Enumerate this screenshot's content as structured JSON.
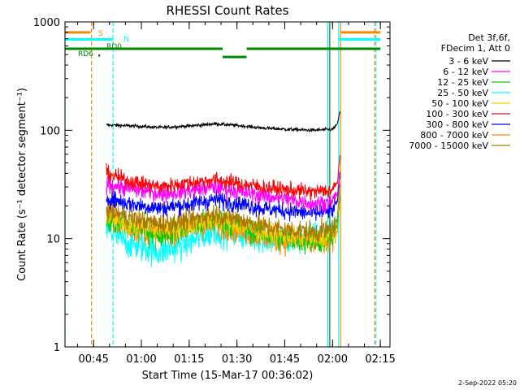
{
  "chart_data": {
    "type": "line",
    "title": "RHESSI Count Rates",
    "xlabel": "Start Time (15-Mar-17 00:36:02)",
    "ylabel": "Count Rate (s⁻¹ detector segment⁻¹)",
    "x_units": "minutes after 00:36:02",
    "xlim": [
      0,
      102
    ],
    "ylim": [
      1,
      1000
    ],
    "yscale": "log",
    "x_ticks": [
      {
        "value": 8.97,
        "label": "00:45"
      },
      {
        "value": 23.97,
        "label": "01:00"
      },
      {
        "value": 38.97,
        "label": "01:15"
      },
      {
        "value": 53.97,
        "label": "01:30"
      },
      {
        "value": 68.97,
        "label": "01:45"
      },
      {
        "value": 83.97,
        "label": "02:00"
      },
      {
        "value": 98.97,
        "label": "02:15"
      }
    ],
    "y_ticks": [
      {
        "value": 1,
        "label": "1"
      },
      {
        "value": 10,
        "label": "10"
      },
      {
        "value": 100,
        "label": "100"
      },
      {
        "value": 1000,
        "label": "1000"
      }
    ],
    "legend_title": [
      "Det 3f,6f,",
      "FDecim 1, Att 0"
    ],
    "legend_position": "right",
    "series": [
      {
        "name": "3 - 6 keV",
        "color": "#000000",
        "x": [
          13,
          20,
          30,
          40,
          47,
          55,
          62,
          70,
          78,
          84,
          85.5,
          86.3
        ],
        "y": [
          112,
          110,
          106,
          110,
          115,
          110,
          105,
          102,
          100,
          102,
          115,
          150
        ]
      },
      {
        "name": "6 - 12 keV",
        "color": "#ff00ff",
        "x": [
          13,
          20,
          30,
          40,
          47,
          55,
          62,
          70,
          78,
          84,
          85.5,
          86.3
        ],
        "y": [
          32,
          29,
          26,
          28,
          30,
          27,
          25,
          23,
          21,
          22,
          26,
          42
        ]
      },
      {
        "name": "12 - 25 keV",
        "color": "#00cc00",
        "x": [
          13,
          20,
          30,
          40,
          47,
          55,
          62,
          70,
          78,
          84,
          85.5,
          86.3
        ],
        "y": [
          15,
          13,
          11,
          13,
          15,
          13,
          11,
          10,
          9.5,
          10,
          13,
          26
        ]
      },
      {
        "name": "25 - 50 keV",
        "color": "#00ffff",
        "x": [
          13,
          20,
          30,
          40,
          47,
          55,
          62,
          70,
          78,
          84,
          85.5,
          86.3
        ],
        "y": [
          12,
          9,
          7.5,
          9.5,
          12,
          11,
          10,
          9.5,
          10.5,
          11,
          14,
          24
        ]
      },
      {
        "name": "50 - 100 keV",
        "color": "#ffcc00",
        "x": [
          13,
          20,
          30,
          40,
          47,
          55,
          62,
          70,
          78,
          84,
          85.5,
          86.3
        ],
        "y": [
          16,
          13.5,
          12,
          13.5,
          15,
          13,
          11.5,
          10.5,
          10,
          10.5,
          14,
          28
        ]
      },
      {
        "name": "100 - 300 keV",
        "color": "#ff0000",
        "x": [
          13,
          20,
          30,
          40,
          47,
          55,
          62,
          70,
          78,
          84,
          85.5,
          86.3
        ],
        "y": [
          40,
          34,
          30,
          33,
          35,
          32,
          30,
          28,
          27,
          28,
          33,
          60
        ]
      },
      {
        "name": "300 - 800 keV",
        "color": "#0000ff",
        "x": [
          13,
          20,
          30,
          40,
          47,
          55,
          62,
          70,
          78,
          84,
          85.5,
          86.3
        ],
        "y": [
          24,
          21,
          19,
          21,
          23,
          21,
          19,
          18,
          17,
          18,
          22,
          40
        ]
      },
      {
        "name": "800 - 7000 keV",
        "color": "#ff8800",
        "x": [
          13,
          20,
          30,
          40,
          47,
          55,
          62,
          70,
          78,
          84,
          85.5,
          86.3
        ],
        "y": [
          16,
          12.5,
          11,
          12.5,
          13.5,
          12,
          10.5,
          9.5,
          9,
          9.5,
          12,
          26
        ]
      },
      {
        "name": "7000 - 15000 keV",
        "color": "#aa7700",
        "x": [
          13,
          20,
          30,
          40,
          47,
          55,
          62,
          70,
          78,
          84,
          85.5,
          86.3
        ],
        "y": [
          19,
          15.5,
          13.5,
          15,
          17,
          15,
          13,
          12,
          11.5,
          12,
          15,
          32
        ]
      }
    ],
    "vlines": [
      {
        "x": 0,
        "color": "#00ffff",
        "style": "solid"
      },
      {
        "x": 8.3,
        "color": "#ff8800",
        "style": "dashed"
      },
      {
        "x": 15.1,
        "color": "#00ffff",
        "style": "dashed"
      },
      {
        "x": 82.5,
        "color": "#00ffff",
        "style": "solid"
      },
      {
        "x": 83.1,
        "color": "#008800",
        "style": "solid"
      },
      {
        "x": 86.5,
        "color": "#ff8800",
        "style": "solid"
      },
      {
        "x": 85.9,
        "color": "#00ffff",
        "style": "solid"
      },
      {
        "x": 97.2,
        "color": "#ff8800",
        "style": "dashed"
      },
      {
        "x": 97.6,
        "color": "#00ffff",
        "style": "dashed"
      }
    ],
    "flag_bars": [
      {
        "label": "S",
        "color": "#ff8800",
        "y": 800,
        "segments": [
          [
            0,
            8.0
          ],
          [
            86.4,
            99.0
          ]
        ]
      },
      {
        "label": "N",
        "color": "#00ffff",
        "y": 690,
        "segments": [
          [
            0,
            15.0
          ],
          [
            85.8,
            99.0
          ]
        ]
      },
      {
        "label": "RD0",
        "color": "#008800",
        "y": 565,
        "segments": [
          [
            0,
            49.5
          ],
          [
            57.0,
            99.0
          ]
        ]
      },
      {
        "label": "",
        "color": "#008800",
        "y": 475,
        "segments": [
          [
            49.5,
            57.0
          ]
        ]
      },
      {
        "label": "RD6",
        "color": "#008800",
        "y": 490,
        "segments": [
          [
            10.5,
            11.0
          ]
        ]
      }
    ],
    "footer": "2-Sep-2022 05:20"
  }
}
